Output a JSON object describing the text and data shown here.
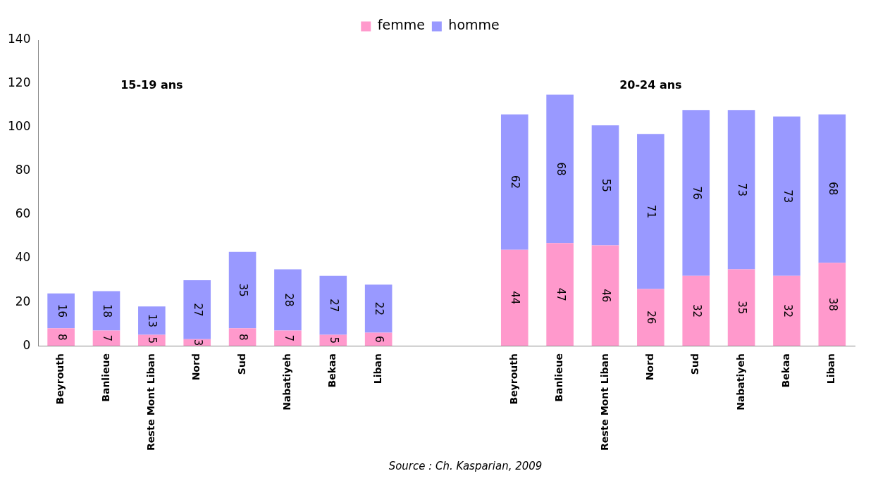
{
  "chart_data": {
    "type": "bar",
    "stacked": true,
    "categories": [
      "Beyrouth",
      "Banlieue",
      "Reste Mont Liban",
      "Nord",
      "Sud",
      "Nabatiyeh",
      "Bekaa",
      "Liban",
      null,
      null,
      "Beyrouth",
      "Banlieue",
      "Reste Mont Liban",
      "Nord",
      "Sud",
      "Nabatiyeh",
      "Bekaa",
      "Liban"
    ],
    "series": [
      {
        "name": "femme",
        "color": "#ff99cc",
        "values": [
          8,
          7,
          5,
          3,
          8,
          7,
          5,
          6,
          null,
          null,
          44,
          47,
          46,
          26,
          32,
          35,
          32,
          38
        ]
      },
      {
        "name": "homme",
        "color": "#9999ff",
        "values": [
          16,
          18,
          13,
          27,
          35,
          28,
          27,
          22,
          null,
          null,
          62,
          68,
          55,
          71,
          76,
          73,
          73,
          68
        ]
      }
    ],
    "ylim": [
      0,
      140
    ],
    "yticks": [
      0,
      20,
      40,
      60,
      80,
      100,
      120,
      140
    ],
    "grid": false,
    "legend": "top",
    "data_labels": true,
    "annotations": [
      "15-19 ans",
      "20-24 ans",
      "Source : Ch. Kasparian, 2009"
    ]
  }
}
